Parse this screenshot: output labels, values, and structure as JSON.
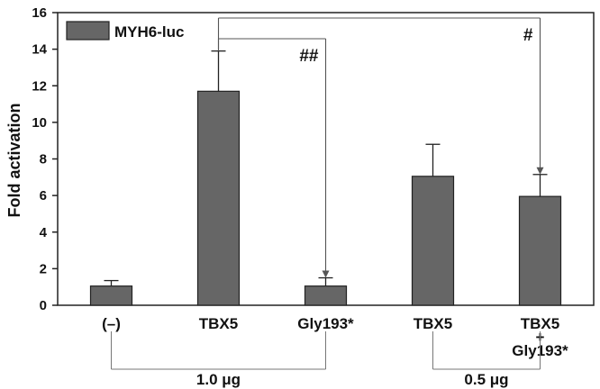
{
  "chart_data": {
    "type": "bar",
    "ylabel": "Fold activation",
    "ylim": [
      0,
      16
    ],
    "yticks": [
      0,
      2,
      4,
      6,
      8,
      10,
      12,
      14,
      16
    ],
    "grid": false,
    "legend": {
      "position": "top-left",
      "label": "MYH6-luc"
    },
    "bar_color": "#666666",
    "categories": [
      {
        "lines": [
          "(–)"
        ]
      },
      {
        "lines": [
          "TBX5"
        ]
      },
      {
        "lines": [
          "Gly193*"
        ]
      },
      {
        "lines": [
          "TBX5"
        ]
      },
      {
        "lines": [
          "TBX5",
          "+",
          "Gly193*"
        ]
      }
    ],
    "values": [
      1.05,
      11.7,
      1.05,
      7.05,
      5.95
    ],
    "errors": [
      0.3,
      2.2,
      0.45,
      1.75,
      1.2
    ],
    "significance": [
      {
        "label": "##",
        "from": 1,
        "to": 2
      },
      {
        "label": "#",
        "from": 1,
        "to": 4
      }
    ],
    "groups": [
      {
        "label": "1.0 μg",
        "from": 0,
        "to": 2
      },
      {
        "label": "0.5 μg",
        "from": 3,
        "to": 4
      }
    ]
  }
}
